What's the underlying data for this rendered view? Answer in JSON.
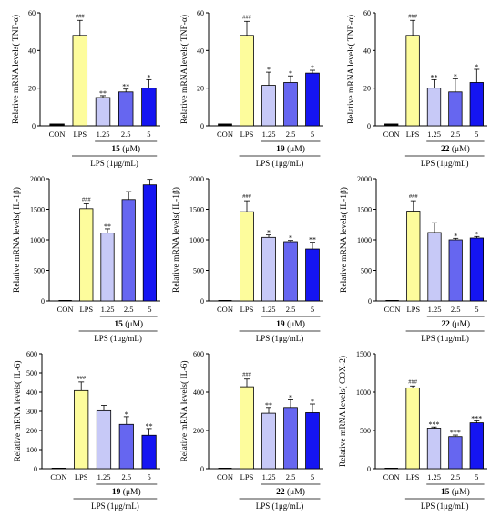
{
  "colors": {
    "CON": "#000000",
    "LPS": "#fdfc9c",
    "1.25": "#c7c9f7",
    "2.5": "#6666f0",
    "5": "#1515f2"
  },
  "chart_data": [
    {
      "type": "bar",
      "title": "",
      "xlabel": "",
      "ylabel": "Relative mRNA levels( TNF-α)",
      "ylim": [
        0,
        60
      ],
      "yticks": [
        0,
        20,
        40,
        60
      ],
      "categories": [
        "CON",
        "LPS",
        "1.25",
        "2.5",
        "5"
      ],
      "values": [
        1,
        48,
        15,
        18,
        20
      ],
      "errors": [
        0,
        8,
        1,
        1.5,
        4.5
      ],
      "sig": [
        "",
        "###",
        "**",
        "**",
        "*"
      ],
      "compound": "15",
      "unit": "(μM)",
      "lps_label": "LPS (1μg/mL)"
    },
    {
      "type": "bar",
      "title": "",
      "xlabel": "",
      "ylabel": "Relative mRNA levels( TNF-α)",
      "ylim": [
        0,
        60
      ],
      "yticks": [
        0,
        20,
        40,
        60
      ],
      "categories": [
        "CON",
        "LPS",
        "1.25",
        "2.5",
        "5"
      ],
      "values": [
        1,
        48,
        21.5,
        23,
        28
      ],
      "errors": [
        0,
        7.5,
        7,
        3.5,
        1.5
      ],
      "sig": [
        "",
        "###",
        "*",
        "*",
        "*"
      ],
      "compound": "19",
      "unit": "(μM)",
      "lps_label": "LPS (1μg/mL)"
    },
    {
      "type": "bar",
      "title": "",
      "xlabel": "",
      "ylabel": "Relative mRNA levels( TNF-α)",
      "ylim": [
        0,
        60
      ],
      "yticks": [
        0,
        20,
        40,
        60
      ],
      "categories": [
        "CON",
        "LPS",
        "1.25",
        "2.5",
        "5"
      ],
      "values": [
        1,
        48,
        20,
        18,
        23
      ],
      "errors": [
        0,
        8,
        4.5,
        7,
        7
      ],
      "sig": [
        "",
        "###",
        "**",
        "*",
        "*"
      ],
      "compound": "22",
      "unit": "(μM)",
      "lps_label": "LPS (1μg/mL)"
    },
    {
      "type": "bar",
      "title": "",
      "xlabel": "",
      "ylabel": "Relative mRNA levels( IL-1β)",
      "ylim": [
        0,
        2000
      ],
      "yticks": [
        0,
        500,
        1000,
        1500,
        2000
      ],
      "categories": [
        "CON",
        "LPS",
        "1.25",
        "2.5",
        "5"
      ],
      "values": [
        0,
        1510,
        1110,
        1660,
        1900
      ],
      "errors": [
        0,
        80,
        70,
        130,
        90
      ],
      "sig": [
        "",
        "###",
        "**",
        "",
        ""
      ],
      "compound": "15",
      "unit": "(μM)",
      "lps_label": "LPS (1μg/mL)"
    },
    {
      "type": "bar",
      "title": "",
      "xlabel": "",
      "ylabel": "Relative mRNA levels( IL-1β)",
      "ylim": [
        0,
        2000
      ],
      "yticks": [
        0,
        500,
        1000,
        1500,
        2000
      ],
      "categories": [
        "CON",
        "LPS",
        "1.25",
        "2.5",
        "5"
      ],
      "values": [
        0,
        1460,
        1040,
        970,
        850
      ],
      "errors": [
        0,
        180,
        40,
        20,
        110
      ],
      "sig": [
        "",
        "###",
        "*",
        "*",
        "**"
      ],
      "compound": "19",
      "unit": "(μM)",
      "lps_label": "LPS (1μg/mL)"
    },
    {
      "type": "bar",
      "title": "",
      "xlabel": "",
      "ylabel": "Relative mRNA levels( IL-1β)",
      "ylim": [
        0,
        2000
      ],
      "yticks": [
        0,
        500,
        1000,
        1500,
        2000
      ],
      "categories": [
        "CON",
        "LPS",
        "1.25",
        "2.5",
        "5"
      ],
      "values": [
        0,
        1470,
        1120,
        1000,
        1030
      ],
      "errors": [
        0,
        170,
        160,
        25,
        25
      ],
      "sig": [
        "",
        "###",
        "",
        "*",
        "*"
      ],
      "compound": "22",
      "unit": "(μM)",
      "lps_label": "LPS (1μg/mL)"
    },
    {
      "type": "bar",
      "title": "",
      "xlabel": "",
      "ylabel": "Relative mRNA levels( IL-6)",
      "ylim": [
        0,
        600
      ],
      "yticks": [
        0,
        100,
        200,
        300,
        400,
        500,
        600
      ],
      "categories": [
        "CON",
        "LPS",
        "1.25",
        "2.5",
        "5"
      ],
      "values": [
        0,
        408,
        303,
        232,
        175
      ],
      "errors": [
        0,
        45,
        28,
        40,
        35
      ],
      "sig": [
        "",
        "###",
        "",
        "*",
        "**"
      ],
      "compound": "19",
      "unit": "(μM)",
      "lps_label": "LPS (1μg/mL)"
    },
    {
      "type": "bar",
      "title": "",
      "xlabel": "",
      "ylabel": "Relative mRNA levels( IL-6)",
      "ylim": [
        0,
        600
      ],
      "yticks": [
        0,
        200,
        400,
        600
      ],
      "categories": [
        "CON",
        "LPS",
        "1.25",
        "2.5",
        "5"
      ],
      "values": [
        0,
        428,
        290,
        320,
        293
      ],
      "errors": [
        0,
        40,
        30,
        40,
        45
      ],
      "sig": [
        "",
        "###",
        "**",
        "*",
        "*"
      ],
      "compound": "22",
      "unit": "(μM)",
      "lps_label": "LPS (1μg/mL)"
    },
    {
      "type": "bar",
      "title": "",
      "xlabel": "",
      "ylabel": "Relative mRNA levels( COX-2)",
      "ylim": [
        0,
        1500
      ],
      "yticks": [
        0,
        500,
        1000,
        1500
      ],
      "categories": [
        "CON",
        "LPS",
        "1.25",
        "2.5",
        "5"
      ],
      "values": [
        0,
        1055,
        530,
        420,
        600
      ],
      "errors": [
        0,
        25,
        15,
        20,
        25
      ],
      "sig": [
        "",
        "###",
        "***",
        "***",
        "***"
      ],
      "compound": "15",
      "unit": "(μM)",
      "lps_label": "LPS (1μg/mL)"
    }
  ]
}
